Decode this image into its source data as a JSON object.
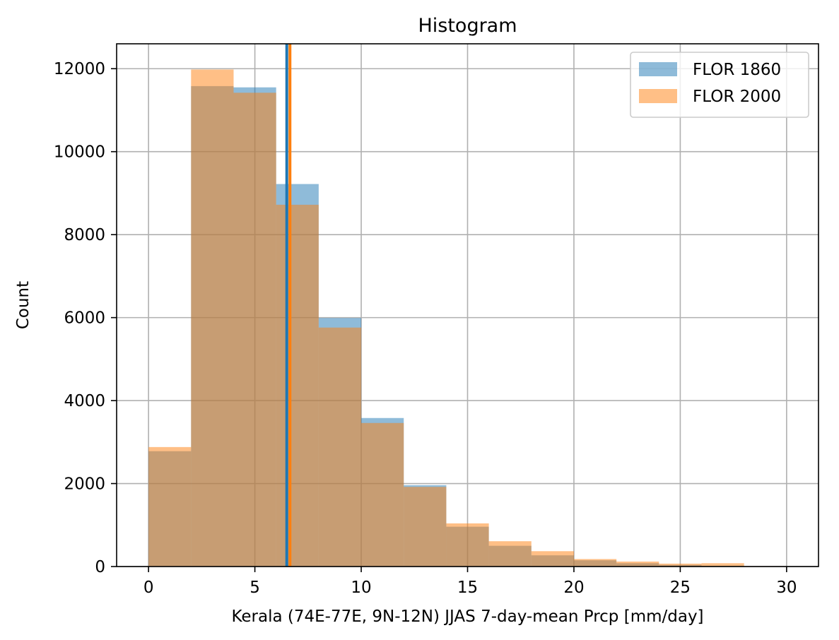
{
  "chart_data": {
    "type": "histogram",
    "title": "Histogram",
    "xlabel": "Kerala (74E-77E, 9N-12N) JJAS 7-day-mean Prcp [mm/day]",
    "ylabel": "Count",
    "xlim": [
      -1.5,
      31.5
    ],
    "ylim": [
      0,
      12600
    ],
    "xticks": [
      0,
      5,
      10,
      15,
      20,
      25,
      30
    ],
    "yticks": [
      0,
      2000,
      4000,
      6000,
      8000,
      10000,
      12000
    ],
    "grid": true,
    "legend_position": "top-right",
    "bin_edges": [
      0,
      2,
      4,
      6,
      8,
      10,
      12,
      14,
      16,
      18,
      20,
      22,
      24,
      26,
      28,
      30
    ],
    "series": [
      {
        "name": "FLOR 1860",
        "color": "#1f77b4",
        "counts": [
          2780,
          11580,
          11550,
          9220,
          5990,
          3580,
          1960,
          960,
          500,
          270,
          150,
          80,
          40,
          20,
          5
        ],
        "mean": 6.5
      },
      {
        "name": "FLOR 2000",
        "color": "#ff7f0e",
        "counts": [
          2880,
          11980,
          11420,
          8720,
          5760,
          3460,
          1920,
          1040,
          610,
          370,
          180,
          120,
          70,
          80,
          10
        ],
        "mean": 6.65
      }
    ]
  }
}
